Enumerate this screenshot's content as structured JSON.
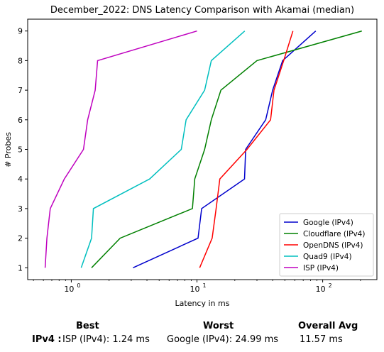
{
  "chart_data": {
    "type": "line",
    "title": "December_2022: DNS Latency Comparison with Akamai (median)",
    "xlabel": "Latency in ms",
    "ylabel": "# Probes",
    "xscale": "log",
    "xlim": [
      0.45,
      270
    ],
    "ylim": [
      0.6,
      9.4
    ],
    "xticks": [
      1,
      10,
      100
    ],
    "xtick_labels": [
      "10",
      "10",
      "10"
    ],
    "xtick_exponents": [
      "0",
      "1",
      "2"
    ],
    "yticks": [
      1,
      2,
      3,
      4,
      5,
      6,
      7,
      8,
      9
    ],
    "ytick_labels": [
      "1",
      "2",
      "3",
      "4",
      "5",
      "6",
      "7",
      "8",
      "9"
    ],
    "grid": false,
    "legend": "lower-right",
    "series": [
      {
        "name": "Google (IPv4)",
        "color": "#0000cc",
        "x": [
          3.1,
          10.2,
          10.9,
          23.9,
          24.4,
          35.2,
          40.0,
          48.0,
          88.0
        ],
        "y": [
          1,
          2,
          3,
          4,
          5,
          6,
          7,
          8,
          9
        ]
      },
      {
        "name": "Cloudflare (IPv4)",
        "color": "#008000",
        "x": [
          1.45,
          2.45,
          9.2,
          9.6,
          11.5,
          13.0,
          15.5,
          30.0,
          205.0
        ],
        "y": [
          1,
          2,
          3,
          4,
          5,
          6,
          7,
          8,
          9
        ]
      },
      {
        "name": "OpenDNS (IPv4)",
        "color": "#ff0000",
        "x": [
          10.5,
          13.2,
          14.2,
          15.2,
          25.0,
          38.5,
          41.0,
          49.0,
          58.0
        ],
        "y": [
          1,
          2,
          3,
          4,
          5,
          6,
          7,
          8,
          9
        ]
      },
      {
        "name": "Quad9 (IPv4)",
        "color": "#00bfbf",
        "x": [
          1.2,
          1.45,
          1.5,
          4.2,
          7.5,
          8.2,
          11.5,
          13.0,
          24.0
        ],
        "y": [
          1,
          2,
          3,
          4,
          5,
          6,
          7,
          8,
          9
        ]
      },
      {
        "name": "ISP (IPv4)",
        "color": "#bf00bf",
        "x": [
          0.62,
          0.64,
          0.68,
          0.88,
          1.25,
          1.35,
          1.55,
          1.62,
          10.0
        ],
        "y": [
          1,
          2,
          3,
          4,
          5,
          6,
          7,
          8,
          9
        ]
      }
    ]
  },
  "stats": {
    "best_header": "Best",
    "worst_header": "Worst",
    "avg_header": "Overall Avg",
    "row_label": "IPv4 :",
    "best_value": "ISP (IPv4): 1.24 ms",
    "worst_value": "Google (IPv4): 24.99 ms",
    "avg_value": "11.57 ms"
  }
}
